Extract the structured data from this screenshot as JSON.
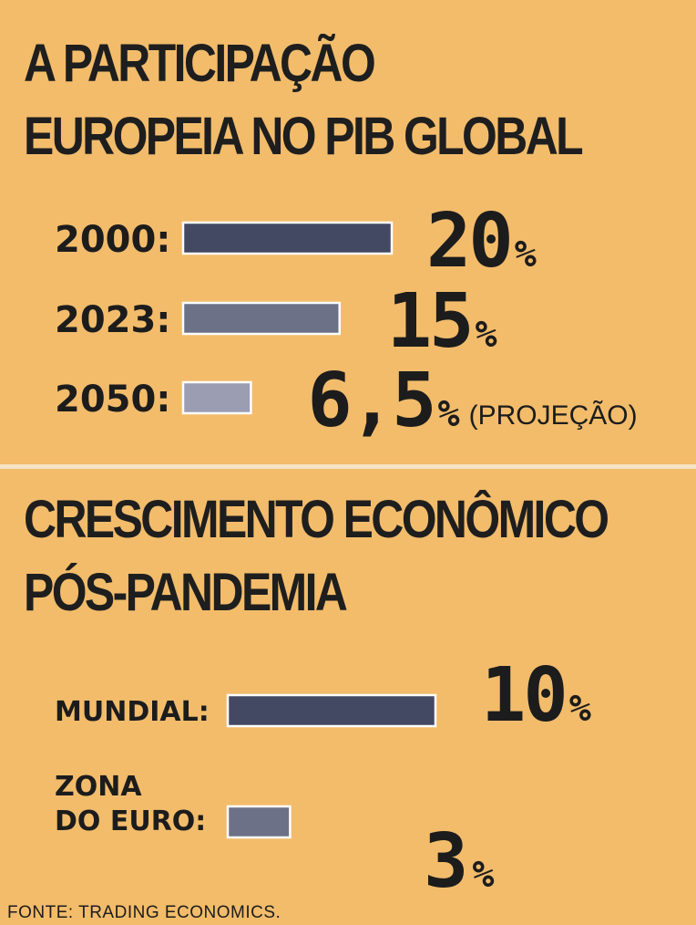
{
  "colors": {
    "background": "#f2bc6b",
    "divider": "#f6e3c4",
    "bar_dark": "#434962",
    "bar_mid": "#6c7187",
    "bar_light": "#9b9db3",
    "bar_border": "#ffffff",
    "text": "#1c1c1c"
  },
  "charts": [
    {
      "title": "A PARTICIPAÇÃO EUROPEIA NO PIB GLOBAL",
      "title_lines": [
        "A PARTICIPAÇÃO",
        "EUROPEIA NO PIB GLOBAL"
      ]
    },
    {
      "title": "CRESCIMENTO ECONÔMICO PÓS-PANDEMIA",
      "title_lines": [
        "CRESCIMENTO ECONÔMICO",
        "PÓS-PANDEMIA"
      ]
    }
  ],
  "chart_data": [
    {
      "type": "bar",
      "orientation": "horizontal",
      "title": "A PARTICIPAÇÃO EUROPEIA NO PIB GLOBAL",
      "categories": [
        "2000:",
        "2023:",
        "2050:"
      ],
      "values": [
        20,
        15,
        6.5
      ],
      "value_labels": [
        "20",
        "15",
        "6,5"
      ],
      "unit": "%",
      "annotations": [
        "",
        "",
        "(PROJEÇÃO)"
      ],
      "bar_colors": [
        "#434962",
        "#6c7187",
        "#9b9db3"
      ],
      "grid": false
    },
    {
      "type": "bar",
      "orientation": "horizontal",
      "title": "CRESCIMENTO ECONÔMICO PÓS-PANDEMIA",
      "categories": [
        "MUNDIAL:",
        "ZONA DO EURO:"
      ],
      "category_lines": [
        [
          "MUNDIAL:"
        ],
        [
          "ZONA",
          "DO EURO:"
        ]
      ],
      "values": [
        10,
        3
      ],
      "value_labels": [
        "10",
        "3"
      ],
      "unit": "%",
      "bar_colors": [
        "#434962",
        "#6c7187"
      ],
      "grid": false
    }
  ],
  "source": "FONTE: TRADING ECONOMICS."
}
